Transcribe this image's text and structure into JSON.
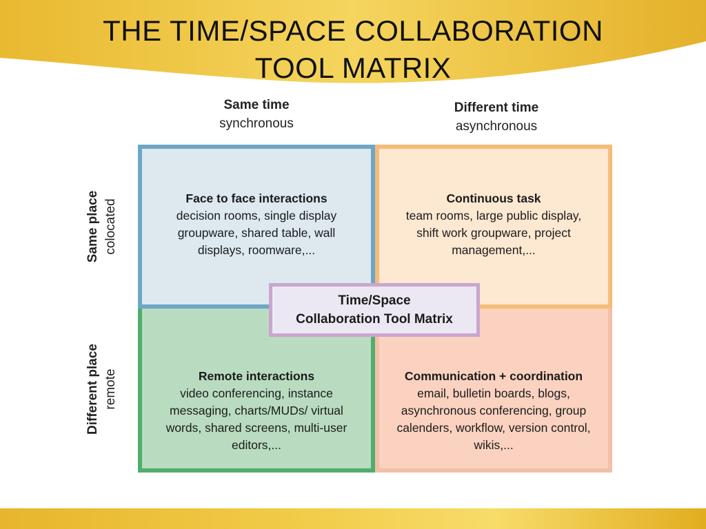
{
  "slide": {
    "title_line1": "THE TIME/SPACE COLLABORATION",
    "title_line2": "TOOL MATRIX"
  },
  "columns": [
    {
      "label": "Same time",
      "sublabel": "synchronous"
    },
    {
      "label": "Different time",
      "sublabel": "asynchronous"
    }
  ],
  "rows": [
    {
      "label": "Same place",
      "sublabel": "colocated"
    },
    {
      "label": "Different place",
      "sublabel": "remote"
    }
  ],
  "quadrants": {
    "top_left": {
      "title": "Face to face interactions",
      "lines": [
        "decision rooms, single display",
        "groupware, shared table, wall",
        "displays, roomware,..."
      ]
    },
    "top_right": {
      "title": "Continuous task",
      "lines": [
        "team rooms, large public display,",
        "shift work groupware, project",
        "management,..."
      ]
    },
    "bottom_left": {
      "title": "Remote interactions",
      "lines": [
        "video conferencing, instance",
        "messaging, charts/MUDs/ virtual",
        "words, shared screens, multi-user",
        "editors,..."
      ]
    },
    "bottom_right": {
      "title": "Communication + coordination",
      "lines": [
        "email, bulletin boards, blogs,",
        "asynchronous conferencing, group",
        "calenders, workflow, version control,",
        "wikis,..."
      ]
    }
  },
  "center": {
    "line1": "Time/Space",
    "line2": "Collaboration Tool Matrix"
  },
  "colors": {
    "header_gold": "#f1c94a",
    "footer_gold": "#ecc03a",
    "blue_border": "#6ea6c6",
    "orange_border": "#f7bb78",
    "green_border": "#4fae6c",
    "salmon_border": "#f3bfa8",
    "purple_border": "#c9a6d0"
  }
}
